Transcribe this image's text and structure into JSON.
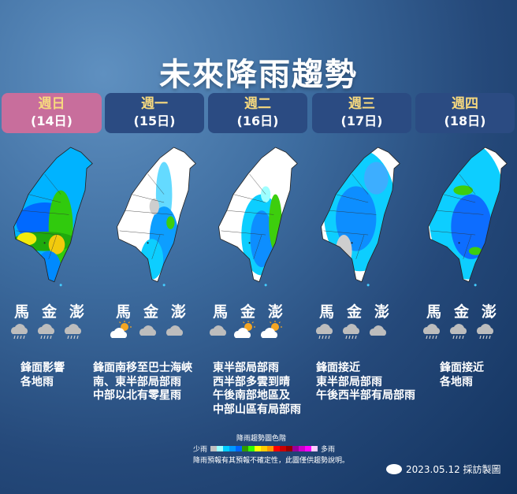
{
  "title": "未來降雨趨勢",
  "days": [
    {
      "day": "週日",
      "date": "(14日)",
      "active": true,
      "islands": [
        "馬",
        "金",
        "澎"
      ],
      "icons": [
        "rain-cloud",
        "rain-cloud",
        "rain-cloud"
      ],
      "desc": "鋒面影響\n各地雨"
    },
    {
      "day": "週一",
      "date": "(15日)",
      "active": false,
      "islands": [
        "馬",
        "金",
        "澎"
      ],
      "icons": [
        "partly-cloudy",
        "cloud",
        "cloud"
      ],
      "desc": "鋒面南移至巴士海峽\n南、東半部局部雨\n中部以北有零星雨"
    },
    {
      "day": "週二",
      "date": "(16日)",
      "active": false,
      "islands": [
        "馬",
        "金",
        "澎"
      ],
      "icons": [
        "cloud",
        "partly-cloudy",
        "partly-cloudy"
      ],
      "desc": "東半部局部雨\n西半部多雲到晴\n午後南部地區及\n中部山區有局部雨"
    },
    {
      "day": "週三",
      "date": "(17日)",
      "active": false,
      "islands": [
        "馬",
        "金",
        "澎"
      ],
      "icons": [
        "rain-cloud",
        "rain-cloud",
        "cloud"
      ],
      "desc": "鋒面接近\n東半部局部雨\n午後西半部有局部雨"
    },
    {
      "day": "週四",
      "date": "(18日)",
      "active": false,
      "islands": [
        "馬",
        "金",
        "澎"
      ],
      "icons": [
        "rain-cloud",
        "rain-cloud",
        "rain-cloud"
      ],
      "desc": "鋒面接近\n各地雨"
    }
  ],
  "legend": {
    "title": "降雨趨勢圖色階",
    "low": "少雨",
    "high": "多雨",
    "colors": [
      "#c0c0c0",
      "#99ffff",
      "#00ccff",
      "#0099ff",
      "#0066ff",
      "#339900",
      "#33ff00",
      "#ffff00",
      "#ffcc00",
      "#ff9900",
      "#ff0000",
      "#cc0000",
      "#990000",
      "#990099",
      "#cc00cc",
      "#ff00ff",
      "#ffccff"
    ],
    "note": "降雨預報有其預報不確定性，此圖僅供趨勢說明。"
  },
  "credit": {
    "text": "2023.05.12 採訪製圖"
  }
}
